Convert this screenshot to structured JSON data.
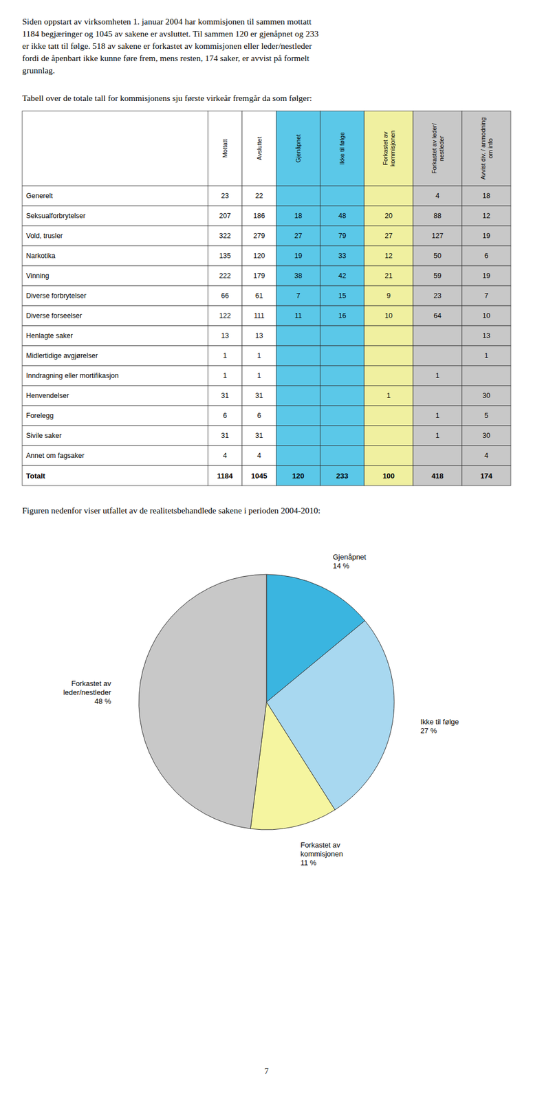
{
  "intro_text": "Siden oppstart av virksomheten 1. januar 2004 har kommisjonen til sammen mottatt\n1184 begjæringer og 1045 av sakene er avsluttet. Til sammen 120 er gjenåpnet og 233\ner ikke tatt til følge. 518 av sakene er forkastet av kommisjonen eller leder/nestleder\nfordi de åpenbart ikke kunne føre frem, mens resten, 174 saker, er avvist på formelt\ngrunnlag.",
  "page_number": "7",
  "chart_data": [
    {
      "type": "table",
      "title": "Tabell over de totale tall for kommisjonens sju første virkeår fremgår da som følger:",
      "columns": [
        "Mottatt",
        "Avsluttet",
        "Gjenåpnet",
        "Ikke til følge",
        "Forkastet av kommisjonen",
        "Forkastet av leder/ nestleder",
        "Avvist div. / anmodning om info"
      ],
      "colors": [
        "#ffffff",
        "#ffffff",
        "#5bc8e8",
        "#5bc8e8",
        "#f0f0a0",
        "#c8c8c8",
        "#c8c8c8"
      ],
      "row_labels": [
        "Generelt",
        "Seksualforbrytelser",
        "Vold, trusler",
        "Narkotika",
        "Vinning",
        "Diverse forbrytelser",
        "Diverse forseelser",
        "Henlagte saker",
        "Midlertidige avgjørelser",
        "Inndragning eller mortifikasjon",
        "Henvendelser",
        "Forelegg",
        "Sivile saker",
        "Annet om fagsaker"
      ],
      "cells": [
        [
          23,
          22,
          null,
          null,
          null,
          4,
          18
        ],
        [
          207,
          186,
          18,
          48,
          20,
          88,
          12
        ],
        [
          322,
          279,
          27,
          79,
          27,
          127,
          19
        ],
        [
          135,
          120,
          19,
          33,
          12,
          50,
          6
        ],
        [
          222,
          179,
          38,
          42,
          21,
          59,
          19
        ],
        [
          66,
          61,
          7,
          15,
          9,
          23,
          7
        ],
        [
          122,
          111,
          11,
          16,
          10,
          64,
          10
        ],
        [
          13,
          13,
          null,
          null,
          null,
          null,
          13
        ],
        [
          1,
          1,
          null,
          null,
          null,
          null,
          1
        ],
        [
          1,
          1,
          null,
          null,
          null,
          1,
          null
        ],
        [
          31,
          31,
          null,
          null,
          1,
          null,
          30
        ],
        [
          6,
          6,
          null,
          null,
          null,
          1,
          5
        ],
        [
          31,
          31,
          null,
          null,
          null,
          1,
          30
        ],
        [
          4,
          4,
          null,
          null,
          null,
          null,
          4
        ]
      ],
      "total_label": "Totalt",
      "totals": [
        1184,
        1045,
        120,
        233,
        100,
        418,
        174
      ]
    },
    {
      "type": "pie",
      "title": "Figuren nedenfor viser utfallet av de realitetsbehandlede sakene i perioden 2004-2010:",
      "categories": [
        "Gjenåpnet",
        "Ikke til følge",
        "Forkastet av\nkommisjonen",
        "Forkastet av\nleder/nestleder"
      ],
      "values": [
        14,
        27,
        11,
        48
      ],
      "value_labels": [
        "14 %",
        "27 %",
        "11 %",
        "48 %"
      ],
      "colors": [
        "#3ab5e0",
        "#a8d8f0",
        "#f5f5a0",
        "#c8c8c8"
      ],
      "data_labels": true
    }
  ]
}
